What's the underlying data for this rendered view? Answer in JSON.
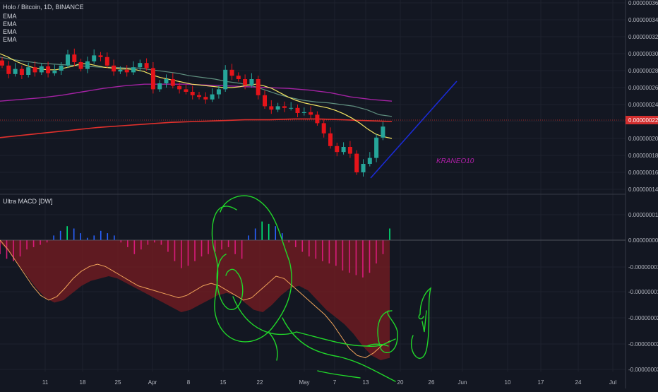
{
  "header": {
    "symbol_title": "Holo / Bitcoin, 1D, BINANCE",
    "indicators": [
      "EMA",
      "EMA",
      "EMA",
      "EMA"
    ]
  },
  "macd_pane": {
    "title": "Ultra MACD [DW]"
  },
  "annotation": {
    "text": "KRANEO10"
  },
  "colors": {
    "background": "#131722",
    "grid": "#1e222d",
    "candle_up": "#26a69a",
    "candle_down": "#e5141a",
    "ema_fast": "#f5e663",
    "ema_mid": "#5f8f7f",
    "ema_slow": "#a322a3",
    "ema_long": "#e0302c",
    "trendline": "#1a2bd6",
    "hist_pos": "#2962ff",
    "hist_neg": "#d81b7a",
    "hist_green": "#00e676",
    "macd_fill": "#7a1c22",
    "signal_line": "#f0a35a",
    "drawing": "#21d62a"
  },
  "chart_data": {
    "type": "candlestick",
    "title": "Holo / Bitcoin, 1D, BINANCE",
    "x_ticks": [
      "11",
      "18",
      "25",
      "Apr",
      "8",
      "15",
      "22",
      "May",
      "7",
      "13",
      "20",
      "26",
      "Jun",
      "10",
      "17",
      "24",
      "Jul"
    ],
    "price_axis": {
      "ylim": [
        1.3e-07,
        3.6e-07
      ],
      "ticks": [
        "0.00000036",
        "0.00000034",
        "0.00000032",
        "0.00000030",
        "0.00000028",
        "0.00000026",
        "0.00000024",
        "0.00000022",
        "0.00000020",
        "0.00000018",
        "0.00000016",
        "0.00000014"
      ],
      "current_price": 2.2e-07,
      "current_price_label": "0.00000022"
    },
    "price_series": {
      "close": [
        2.86e-07,
        2.76e-07,
        2.82e-07,
        2.75e-07,
        2.84e-07,
        2.78e-07,
        2.85e-07,
        2.77e-07,
        2.8e-07,
        2.86e-07,
        2.99e-07,
        2.9e-07,
        2.82e-07,
        2.91e-07,
        2.98e-07,
        2.96e-07,
        2.86e-07,
        2.79e-07,
        2.81e-07,
        2.78e-07,
        2.84e-07,
        2.89e-07,
        2.83e-07,
        2.58e-07,
        2.65e-07,
        2.7e-07,
        2.62e-07,
        2.58e-07,
        2.55e-07,
        2.51e-07,
        2.49e-07,
        2.46e-07,
        2.52e-07,
        2.58e-07,
        2.81e-07,
        2.74e-07,
        2.7e-07,
        2.63e-07,
        2.7e-07,
        2.51e-07,
        2.38e-07,
        2.34e-07,
        2.38e-07,
        2.36e-07,
        2.36e-07,
        2.3e-07,
        2.31e-07,
        2.28e-07,
        2.18e-07,
        2.06e-07,
        1.91e-07,
        1.84e-07,
        1.9e-07,
        1.82e-07,
        1.6e-07,
        1.7e-07,
        1.77e-07,
        2.01e-07,
        2.14e-07
      ],
      "ema_fast": [
        3e-07,
        2.96e-07,
        2.91e-07,
        2.87e-07,
        2.84e-07,
        2.82e-07,
        2.81e-07,
        2.81e-07,
        2.83e-07,
        2.85e-07,
        2.88e-07,
        2.88e-07,
        2.86e-07,
        2.84e-07,
        2.83e-07,
        2.82e-07,
        2.82e-07,
        2.81e-07,
        2.79e-07,
        2.75e-07,
        2.72e-07,
        2.7e-07,
        2.68e-07,
        2.66e-07,
        2.64e-07,
        2.63e-07,
        2.62e-07,
        2.61e-07,
        2.6e-07,
        2.6e-07,
        2.61e-07,
        2.63e-07,
        2.64e-07,
        2.62e-07,
        2.59e-07,
        2.54e-07,
        2.49e-07,
        2.45e-07,
        2.42e-07,
        2.4e-07,
        2.38e-07,
        2.36e-07,
        2.33e-07,
        2.29e-07,
        2.24e-07,
        2.18e-07,
        2.11e-07,
        2.05e-07,
        2.02e-07,
        2e-07
      ],
      "ema_mid": [
        2.96e-07,
        2.93e-07,
        2.91e-07,
        2.89e-07,
        2.88e-07,
        2.87e-07,
        2.86e-07,
        2.85e-07,
        2.84e-07,
        2.84e-07,
        2.83e-07,
        2.83e-07,
        2.81e-07,
        2.79e-07,
        2.77e-07,
        2.74e-07,
        2.72e-07,
        2.7e-07,
        2.67e-07,
        2.65e-07,
        2.62e-07,
        2.57e-07,
        2.52e-07,
        2.48e-07,
        2.45e-07,
        2.43e-07,
        2.42e-07,
        2.4e-07,
        2.38e-07,
        2.34e-07,
        2.28e-07,
        2.26e-07
      ],
      "ema_slow": [
        2.44e-07,
        2.46e-07,
        2.48e-07,
        2.51e-07,
        2.55e-07,
        2.59e-07,
        2.62e-07,
        2.64e-07,
        2.64e-07,
        2.64e-07,
        2.63e-07,
        2.62e-07,
        2.61e-07,
        2.6e-07,
        2.59e-07,
        2.57e-07,
        2.54e-07,
        2.49e-07,
        2.46e-07,
        2.44e-07
      ],
      "ema_long": [
        2.01e-07,
        2.04e-07,
        2.07e-07,
        2.1e-07,
        2.13e-07,
        2.15e-07,
        2.17e-07,
        2.19e-07,
        2.2e-07,
        2.21e-07,
        2.22e-07,
        2.22e-07,
        2.23e-07,
        2.23e-07,
        2.22e-07,
        2.21e-07,
        2.2e-07
      ]
    },
    "macd_axis": {
      "ticks": [
        "0.00000001",
        "0.00000000",
        "-0.00000001",
        "-0.00000001",
        "-0.00000002",
        "-0.00000002",
        "-0.00000003"
      ]
    },
    "macd_series": {
      "histogram": [
        -6,
        -8,
        -9,
        -7,
        -4,
        -3,
        -2,
        -1,
        2,
        4,
        6,
        5,
        3,
        1,
        2,
        4,
        3,
        2,
        -1,
        -3,
        -6,
        -4,
        -2,
        -1,
        -2,
        -5,
        -9,
        -12,
        -11,
        -9,
        -7,
        -6,
        -5,
        -4,
        -3,
        -6,
        -8,
        2,
        5,
        8,
        7,
        6,
        3,
        -1,
        -3,
        -5,
        -7,
        -8,
        -9,
        -10,
        -11,
        -13,
        -14,
        -15,
        -16,
        -14,
        -10,
        -6,
        5
      ],
      "macd_line": [
        -2,
        -10,
        -20,
        -30,
        -40,
        -48,
        -52,
        -50,
        -44,
        -38,
        -34,
        -32,
        -30,
        -32,
        -36,
        -40,
        -44,
        -48,
        -52,
        -56,
        -60,
        -58,
        -54,
        -50,
        -46,
        -44,
        -46,
        -52,
        -58,
        -60,
        -54,
        -46,
        -40,
        -38,
        -42,
        -50,
        -58,
        -64,
        -70,
        -78,
        -88,
        -96,
        -100,
        -98
      ],
      "signal_line": [
        0,
        -8,
        -18,
        -28,
        -38,
        -46,
        -50,
        -47,
        -40,
        -32,
        -26,
        -22,
        -20,
        -22,
        -26,
        -30,
        -34,
        -38,
        -40,
        -42,
        -44,
        -46,
        -48,
        -46,
        -42,
        -38,
        -36,
        -38,
        -42,
        -46,
        -50,
        -48,
        -42,
        -36,
        -30,
        -32,
        -38,
        -44,
        -50,
        -56,
        -62,
        -70,
        -80,
        -90,
        -96,
        -98,
        -94,
        -88,
        -84
      ]
    }
  }
}
